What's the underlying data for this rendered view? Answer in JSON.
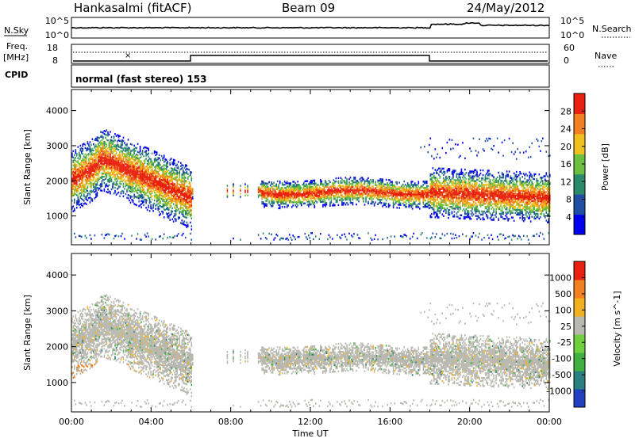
{
  "header": {
    "station": "Hankasalmi (fitACF)",
    "beam": "Beam 09",
    "date": "24/May/2012"
  },
  "strip": {
    "nsky_label": "N.Sky",
    "nsky_ticks": [
      "10^5",
      "10^0"
    ],
    "nsearch_label": "N.Search",
    "nsearch_ticks": [
      "10^5",
      "10^0"
    ],
    "freq_label": "Freq.",
    "freq_unit": "[MHz]",
    "freq_ticks": [
      "18",
      "8"
    ],
    "nave_label": "Nave",
    "nave_ticks": [
      "60",
      "0"
    ],
    "cpid_label": "CPID",
    "cpid_text": "normal (fast stereo) 153"
  },
  "chart_data": [
    {
      "type": "heatmap",
      "name": "power-panel",
      "ylabel": "Slant Range [km]",
      "ylim": [
        180,
        4600
      ],
      "yticks": [
        "4000",
        "3000",
        "2000",
        "1000"
      ],
      "yticks_values": [
        4000,
        3000,
        2000,
        1000
      ],
      "xlim": [
        0,
        24
      ],
      "colorbar": {
        "label": "Power [dB]",
        "ticks": [
          "28",
          "24",
          "20",
          "16",
          "12",
          "8",
          "4"
        ],
        "ticks_values": [
          28,
          24,
          20,
          16,
          12,
          8,
          4
        ],
        "range": [
          0,
          32
        ],
        "colors": [
          "#0000ee",
          "#1f4ea3",
          "#2a8a6a",
          "#6cc040",
          "#f0c020",
          "#f08020",
          "#e82010"
        ]
      }
    },
    {
      "type": "heatmap",
      "name": "velocity-panel",
      "ylabel": "Slant Range [km]",
      "ylim": [
        180,
        4600
      ],
      "yticks": [
        "4000",
        "3000",
        "2000",
        "1000"
      ],
      "yticks_values": [
        4000,
        3000,
        2000,
        1000
      ],
      "xlim": [
        0,
        24
      ],
      "colorbar": {
        "label": "Velocity [m s^-1]",
        "ticks": [
          "1000",
          "500",
          "100",
          "25",
          "-25",
          "-100",
          "-500",
          "-1000"
        ],
        "colors": [
          "#2040c0",
          "#2a8080",
          "#40b040",
          "#70d040",
          "#b8b8b0",
          "#f0b020",
          "#f08020",
          "#e82010"
        ]
      }
    }
  ],
  "xaxis": {
    "ticks": [
      "00:00",
      "04:00",
      "08:00",
      "12:00",
      "16:00",
      "20:00",
      "00:00"
    ],
    "ticks_values": [
      0,
      4,
      8,
      12,
      16,
      20,
      24
    ],
    "label": "Time UT"
  }
}
